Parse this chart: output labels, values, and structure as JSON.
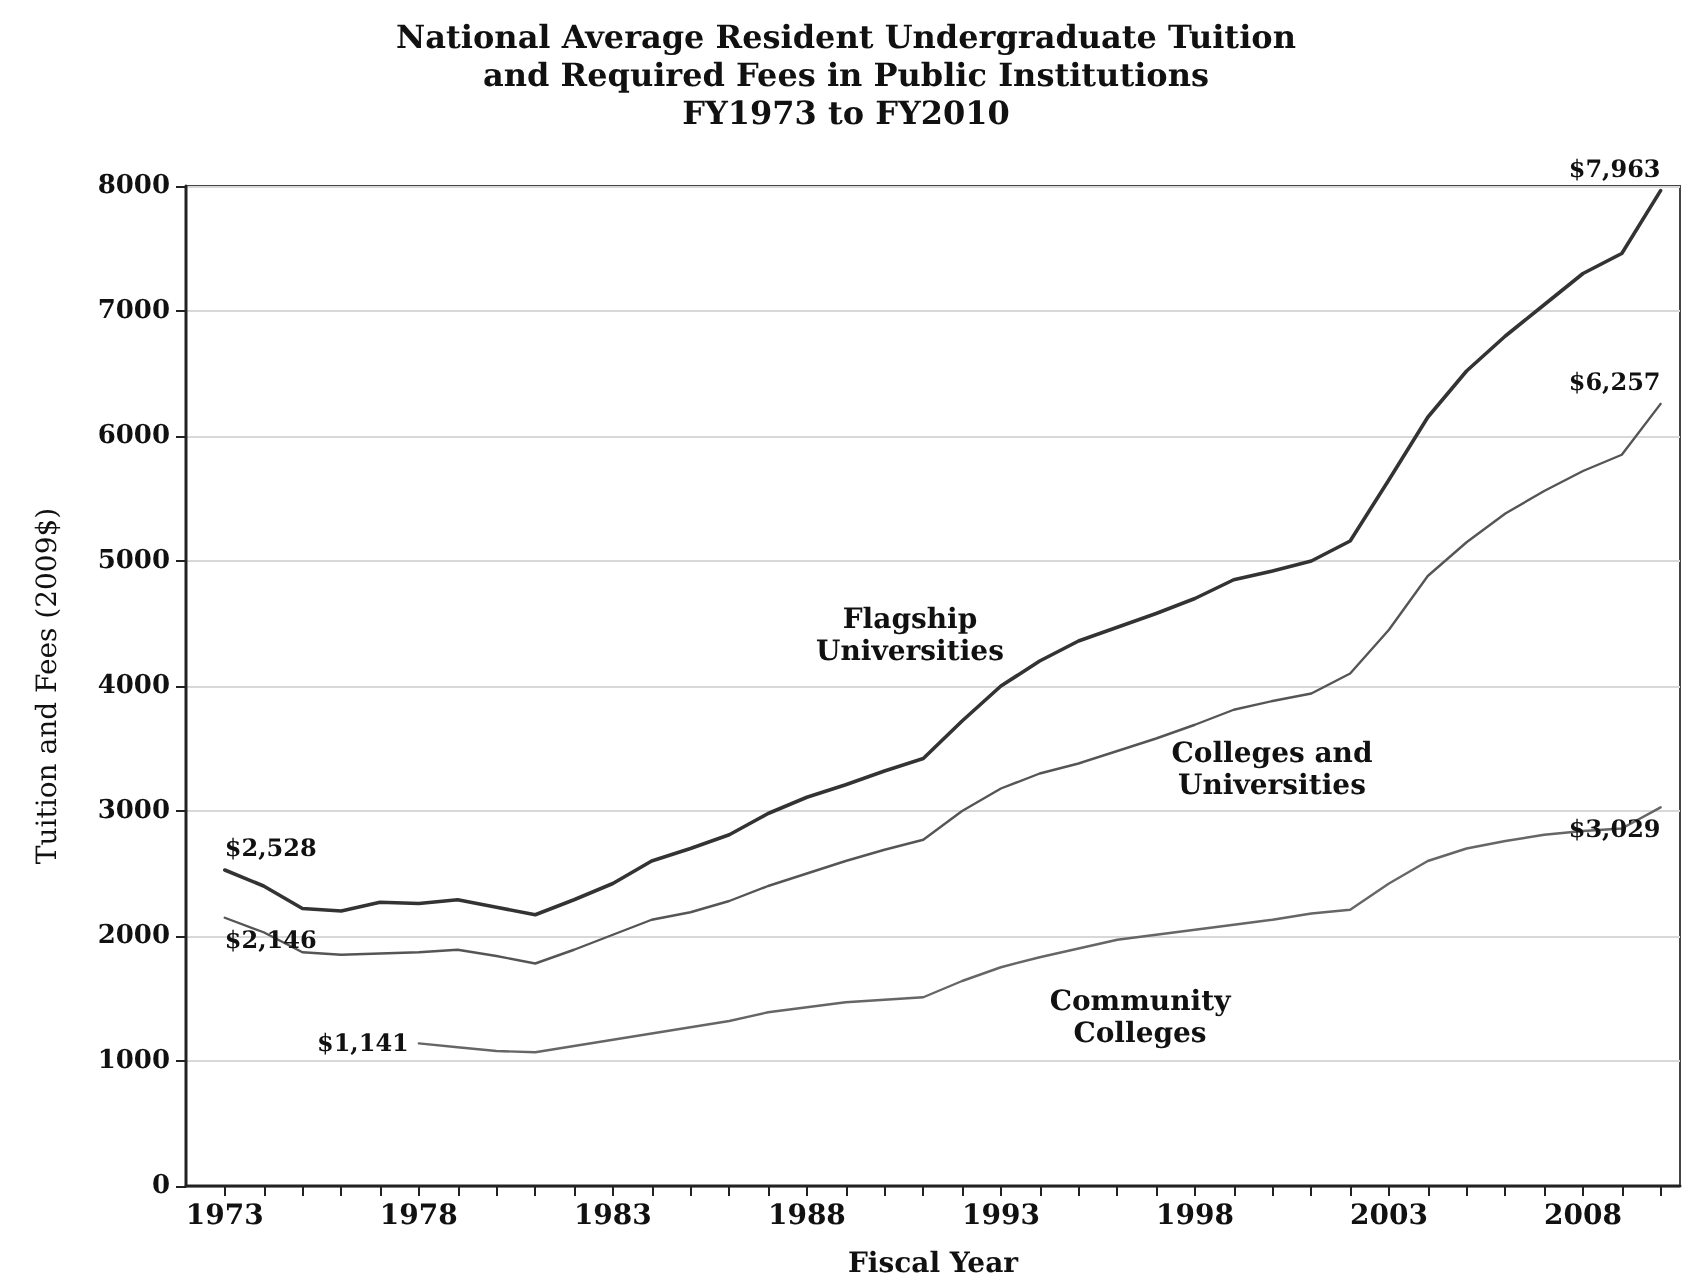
{
  "chart_data": {
    "type": "line",
    "title": "National Average Resident Undergraduate Tuition\nand Required Fees in Public Institutions\nFY1973 to FY2010",
    "xlabel": "Fiscal Year",
    "ylabel": "Tuition and Fees (2009$)",
    "x": [
      1973,
      1974,
      1975,
      1976,
      1977,
      1978,
      1979,
      1980,
      1981,
      1982,
      1983,
      1984,
      1985,
      1986,
      1987,
      1988,
      1989,
      1990,
      1991,
      1992,
      1993,
      1994,
      1995,
      1996,
      1997,
      1998,
      1999,
      2000,
      2001,
      2002,
      2003,
      2004,
      2005,
      2006,
      2007,
      2008,
      2009,
      2010
    ],
    "series": [
      {
        "name": "Flagship Universities",
        "color": "#333333",
        "values": [
          2528,
          2400,
          2220,
          2200,
          2270,
          2260,
          2290,
          2230,
          2170,
          2290,
          2420,
          2600,
          2700,
          2810,
          2980,
          3110,
          3210,
          3320,
          3420,
          3720,
          4000,
          4200,
          4360,
          4470,
          4580,
          4700,
          4850,
          4920,
          5000,
          5160,
          5650,
          6150,
          6520,
          6800,
          7050,
          7300,
          7460,
          7963
        ],
        "value_labels": [
          "$2,528",
          null,
          null,
          null,
          null,
          null,
          null,
          null,
          null,
          null,
          null,
          null,
          null,
          null,
          null,
          null,
          null,
          null,
          null,
          null,
          null,
          null,
          null,
          null,
          null,
          null,
          null,
          null,
          null,
          null,
          null,
          null,
          null,
          null,
          null,
          null,
          null,
          "$7,963"
        ]
      },
      {
        "name": "Colleges and Universities",
        "color": "#555555",
        "values": [
          2146,
          2030,
          1870,
          1850,
          1860,
          1870,
          1890,
          1840,
          1780,
          1890,
          2010,
          2130,
          2190,
          2280,
          2400,
          2500,
          2600,
          2690,
          2770,
          3000,
          3180,
          3300,
          3380,
          3480,
          3580,
          3690,
          3810,
          3880,
          3940,
          4100,
          4450,
          4880,
          5150,
          5380,
          5560,
          5720,
          5850,
          6257
        ],
        "value_labels": [
          "$2,146",
          null,
          null,
          null,
          null,
          null,
          null,
          null,
          null,
          null,
          null,
          null,
          null,
          null,
          null,
          null,
          null,
          null,
          null,
          null,
          null,
          null,
          null,
          null,
          null,
          null,
          null,
          null,
          null,
          null,
          null,
          null,
          null,
          null,
          null,
          null,
          null,
          "$6,257"
        ]
      },
      {
        "name": "Community Colleges",
        "color": "#666666",
        "values": [
          null,
          null,
          null,
          null,
          null,
          1141,
          1110,
          1080,
          1070,
          1120,
          1170,
          1220,
          1270,
          1320,
          1390,
          1430,
          1470,
          1490,
          1510,
          1640,
          1750,
          1830,
          1900,
          1970,
          2010,
          2050,
          2090,
          2130,
          2180,
          2210,
          2420,
          2600,
          2700,
          2760,
          2810,
          2840,
          2860,
          3029
        ],
        "value_labels": [
          null,
          null,
          null,
          null,
          null,
          "$1,141",
          null,
          null,
          null,
          null,
          null,
          null,
          null,
          null,
          null,
          null,
          null,
          null,
          null,
          null,
          null,
          null,
          null,
          null,
          null,
          null,
          null,
          null,
          null,
          null,
          null,
          null,
          null,
          null,
          null,
          null,
          null,
          "$3,029"
        ]
      }
    ],
    "xlim": [
      1972,
      2010.5
    ],
    "xticks": [
      1973,
      {
        "value": 1974,
        "label": null
      },
      {
        "value": 1975,
        "label": null
      },
      {
        "value": 1976,
        "label": null
      },
      {
        "value": 1977,
        "label": null
      },
      1978,
      {
        "value": 1979,
        "label": null
      },
      {
        "value": 1980,
        "label": null
      },
      {
        "value": 1981,
        "label": null
      },
      {
        "value": 1982,
        "label": null
      },
      1983,
      {
        "value": 1984,
        "label": null
      },
      {
        "value": 1985,
        "label": null
      },
      {
        "value": 1986,
        "label": null
      },
      {
        "value": 1987,
        "label": null
      },
      1988,
      {
        "value": 1989,
        "label": null
      },
      {
        "value": 1990,
        "label": null
      },
      {
        "value": 1991,
        "label": null
      },
      {
        "value": 1992,
        "label": null
      },
      1993,
      {
        "value": 1994,
        "label": null
      },
      {
        "value": 1995,
        "label": null
      },
      {
        "value": 1996,
        "label": null
      },
      {
        "value": 1997,
        "label": null
      },
      1998,
      {
        "value": 1999,
        "label": null
      },
      {
        "value": 2000,
        "label": null
      },
      {
        "value": 2001,
        "label": null
      },
      {
        "value": 2002,
        "label": null
      },
      2003,
      {
        "value": 2004,
        "label": null
      },
      {
        "value": 2005,
        "label": null
      },
      {
        "value": 2006,
        "label": null
      },
      {
        "value": 2007,
        "label": null
      },
      2008,
      {
        "value": 2009,
        "label": null
      },
      {
        "value": 2010,
        "label": null
      }
    ],
    "ylim": [
      0,
      8000
    ],
    "yticks": [
      0,
      1000,
      2000,
      3000,
      4000,
      5000,
      6000,
      7000,
      8000
    ],
    "grid": "y",
    "legend": false,
    "marker": "none",
    "line_style": "solid"
  }
}
